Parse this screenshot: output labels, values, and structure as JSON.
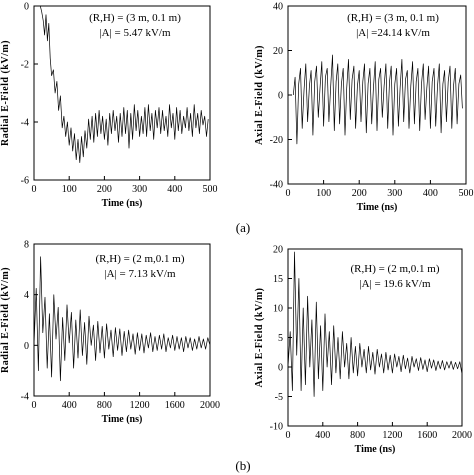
{
  "panel_labels": [
    "(a)",
    "(b)"
  ],
  "chart_data": [
    {
      "type": "line",
      "xlabel": "Time (ns)",
      "ylabel": "Radial E-Field (kV/m)",
      "annotations": [
        "(R,H) = (3 m, 0.1 m)",
        "|A| = 5.47 kV/m"
      ],
      "xlim": [
        0,
        500
      ],
      "ylim": [
        -6,
        0
      ],
      "xticks": [
        0,
        100,
        200,
        300,
        400,
        500
      ],
      "yticks": [
        0,
        -2,
        -4,
        -6
      ],
      "series": [
        {
          "x": [
            0,
            18,
            22,
            26,
            30,
            34,
            38,
            42,
            46,
            50,
            55,
            60,
            65,
            70,
            75,
            80,
            85,
            90,
            95,
            100,
            105,
            110,
            115,
            120,
            125,
            130,
            135,
            140,
            145,
            150,
            155,
            160,
            165,
            170,
            175,
            180,
            185,
            190,
            195,
            200,
            205,
            210,
            215,
            220,
            225,
            230,
            235,
            240,
            245,
            250,
            255,
            260,
            265,
            270,
            275,
            280,
            285,
            290,
            295,
            300,
            305,
            310,
            315,
            320,
            325,
            330,
            335,
            340,
            345,
            350,
            355,
            360,
            365,
            370,
            375,
            380,
            385,
            390,
            395,
            400,
            405,
            410,
            415,
            420,
            425,
            430,
            435,
            440,
            445,
            450,
            455,
            460,
            465,
            470,
            475,
            480,
            485,
            490,
            495
          ],
          "values": [
            0,
            0,
            -0.2,
            -0.5,
            -1.0,
            -0.3,
            -1.2,
            -0.6,
            -1.8,
            -2.4,
            -2.2,
            -3.0,
            -2.6,
            -3.6,
            -3.1,
            -4.2,
            -3.8,
            -4.5,
            -4.0,
            -4.8,
            -4.2,
            -5.0,
            -4.4,
            -5.3,
            -4.6,
            -5.4,
            -4.5,
            -5.2,
            -4.3,
            -4.9,
            -3.9,
            -4.6,
            -3.8,
            -4.7,
            -3.7,
            -4.5,
            -3.6,
            -4.4,
            -3.8,
            -4.6,
            -3.9,
            -4.8,
            -3.7,
            -4.4,
            -3.6,
            -4.3,
            -3.8,
            -4.7,
            -3.7,
            -4.5,
            -3.5,
            -4.4,
            -3.6,
            -4.9,
            -3.7,
            -4.6,
            -3.4,
            -4.3,
            -3.6,
            -4.5,
            -3.8,
            -4.4,
            -3.5,
            -4.5,
            -3.4,
            -4.3,
            -3.7,
            -4.6,
            -3.6,
            -4.2,
            -3.5,
            -4.4,
            -3.6,
            -4.3,
            -3.8,
            -4.5,
            -3.4,
            -4.2,
            -3.7,
            -4.6,
            -3.5,
            -4.3,
            -3.6,
            -4.4,
            -3.8,
            -4.2,
            -3.5,
            -4.3,
            -3.7,
            -4.5,
            -3.4,
            -4.2,
            -3.7,
            -4.4,
            -3.6,
            -4.1,
            -3.8,
            -4.5,
            -3.9
          ]
        }
      ]
    },
    {
      "type": "line",
      "xlabel": "Time (ns)",
      "ylabel": "Axial E-Field (kV/m)",
      "annotations": [
        "(R,H) = (3 m, 0.1 m)",
        "|A| =24.14 kV/m"
      ],
      "xlim": [
        0,
        500
      ],
      "ylim": [
        -40,
        40
      ],
      "xticks": [
        0,
        100,
        200,
        300,
        400,
        500
      ],
      "yticks": [
        40,
        20,
        0,
        -20,
        -40
      ],
      "series": [
        {
          "x": [
            15,
            20,
            25,
            30,
            35,
            40,
            45,
            50,
            55,
            60,
            65,
            70,
            75,
            80,
            85,
            90,
            95,
            100,
            105,
            110,
            115,
            120,
            125,
            130,
            135,
            140,
            145,
            150,
            155,
            160,
            165,
            170,
            175,
            180,
            185,
            190,
            195,
            200,
            205,
            210,
            215,
            220,
            225,
            230,
            235,
            240,
            245,
            250,
            255,
            260,
            265,
            270,
            275,
            280,
            285,
            290,
            295,
            300,
            305,
            310,
            315,
            320,
            325,
            330,
            335,
            340,
            345,
            350,
            355,
            360,
            365,
            370,
            375,
            380,
            385,
            390,
            395,
            400,
            405,
            410,
            415,
            420,
            425,
            430,
            435,
            440,
            445,
            450,
            455,
            460,
            465,
            470,
            475,
            480,
            485,
            490
          ],
          "values": [
            0,
            8,
            -22,
            5,
            12,
            -15,
            2,
            14,
            -12,
            4,
            11,
            -18,
            6,
            13,
            -10,
            3,
            15,
            -14,
            8,
            12,
            -12,
            4,
            18,
            -16,
            6,
            14,
            -13,
            5,
            12,
            -18,
            3,
            16,
            -11,
            7,
            13,
            -15,
            4,
            11,
            -12,
            6,
            14,
            -17,
            5,
            12,
            -13,
            3,
            15,
            -16,
            7,
            12,
            -10,
            4,
            14,
            -15,
            6,
            13,
            -18,
            5,
            12,
            -14,
            3,
            16,
            -12,
            7,
            11,
            -15,
            4,
            15,
            -13,
            6,
            12,
            -16,
            5,
            14,
            -11,
            3,
            13,
            -15,
            6,
            12,
            -14,
            4,
            14,
            -17,
            5,
            11,
            -12,
            6,
            13,
            -15,
            4,
            12,
            -13,
            5,
            9,
            -6
          ]
        }
      ]
    },
    {
      "type": "line",
      "xlabel": "Time (ns)",
      "ylabel": "Radial E-Field (kV/m)",
      "annotations": [
        "(R,H) = (2 m,0.1 m)",
        "|A| = 7.13 kV/m"
      ],
      "xlim": [
        0,
        2000
      ],
      "ylim": [
        -4,
        8
      ],
      "xticks": [
        0,
        400,
        800,
        1200,
        1600,
        2000
      ],
      "yticks": [
        8,
        4,
        0,
        -4
      ],
      "series": [
        {
          "x": [
            0,
            25,
            50,
            75,
            100,
            125,
            150,
            175,
            200,
            225,
            250,
            275,
            300,
            325,
            350,
            375,
            400,
            425,
            450,
            475,
            500,
            525,
            550,
            575,
            600,
            625,
            650,
            675,
            700,
            725,
            750,
            775,
            800,
            825,
            850,
            875,
            900,
            925,
            950,
            975,
            1000,
            1025,
            1050,
            1075,
            1100,
            1125,
            1150,
            1175,
            1200,
            1225,
            1250,
            1275,
            1300,
            1325,
            1350,
            1375,
            1400,
            1425,
            1450,
            1475,
            1500,
            1525,
            1550,
            1575,
            1600,
            1625,
            1650,
            1675,
            1700,
            1725,
            1750,
            1775,
            1800,
            1825,
            1850,
            1875,
            1900,
            1925,
            1950,
            1975,
            2000
          ],
          "values": [
            0,
            4.5,
            -2.0,
            7.0,
            1.0,
            3.8,
            -1.8,
            2.5,
            -2.5,
            4.0,
            0.5,
            3.0,
            -2.8,
            2.2,
            -1.2,
            3.2,
            0.2,
            2.6,
            -1.8,
            2.0,
            -1.0,
            2.8,
            -0.8,
            1.8,
            -1.5,
            2.3,
            0.0,
            1.6,
            -1.2,
            1.9,
            -0.6,
            1.5,
            -1.0,
            1.7,
            -0.3,
            1.2,
            -0.9,
            1.4,
            -0.4,
            1.3,
            -0.8,
            1.1,
            -0.5,
            1.2,
            -0.3,
            0.9,
            -0.7,
            1.0,
            -0.4,
            0.9,
            -0.6,
            0.8,
            -0.2,
            1.0,
            -0.5,
            0.7,
            -0.4,
            0.8,
            -0.3,
            0.9,
            -0.5,
            0.6,
            -0.2,
            0.8,
            -0.4,
            0.7,
            -0.3,
            0.6,
            -0.5,
            0.7,
            -0.2,
            0.6,
            -0.4,
            0.5,
            -0.3,
            0.7,
            -0.2,
            0.5,
            -0.3,
            0.6,
            0.0
          ]
        }
      ]
    },
    {
      "type": "line",
      "xlabel": "Time (ns)",
      "ylabel": "Axial E-Field (kV/m)",
      "annotations": [
        "(R,H) = (2 m,0.1 m)",
        "|A| = 19.6 kV/m"
      ],
      "xlim": [
        0,
        2000
      ],
      "ylim": [
        -10,
        20
      ],
      "xticks": [
        0,
        400,
        800,
        1200,
        1600,
        2000
      ],
      "yticks": [
        20,
        15,
        10,
        5,
        0,
        -5,
        -10
      ],
      "series": [
        {
          "x": [
            0,
            25,
            50,
            75,
            100,
            125,
            150,
            175,
            200,
            225,
            250,
            275,
            300,
            325,
            350,
            375,
            400,
            425,
            450,
            475,
            500,
            525,
            550,
            575,
            600,
            625,
            650,
            675,
            700,
            725,
            750,
            775,
            800,
            825,
            850,
            875,
            900,
            925,
            950,
            975,
            1000,
            1025,
            1050,
            1075,
            1100,
            1125,
            1150,
            1175,
            1200,
            1225,
            1250,
            1275,
            1300,
            1325,
            1350,
            1375,
            1400,
            1425,
            1450,
            1475,
            1500,
            1525,
            1550,
            1575,
            1600,
            1625,
            1650,
            1675,
            1700,
            1725,
            1750,
            1775,
            1800,
            1825,
            1850,
            1875,
            1900,
            1925,
            1950,
            1975,
            2000
          ],
          "values": [
            0,
            6,
            -4,
            19.5,
            2,
            15,
            -4,
            10,
            -3,
            12,
            0,
            8,
            -5,
            11,
            -2,
            7,
            -4,
            9,
            0,
            6,
            -3,
            7,
            -1,
            5,
            -2,
            6,
            0,
            4,
            -2,
            5,
            -1,
            3.5,
            -1.5,
            4,
            0,
            3,
            -1,
            3.5,
            -0.5,
            2.5,
            -1.2,
            3,
            0,
            2.2,
            -1,
            2.5,
            -0.5,
            2,
            -1,
            2.2,
            0,
            1.8,
            -0.8,
            2,
            -0.3,
            1.5,
            -1,
            1.8,
            0,
            1.4,
            -0.6,
            1.6,
            -0.4,
            1.2,
            -0.8,
            1.4,
            -0.2,
            1.2,
            -0.6,
            1.0,
            -0.3,
            1.1,
            -0.5,
            0.9,
            -0.2,
            1.0,
            -0.4,
            0.8,
            -0.3,
            0.9,
            -1.2
          ]
        }
      ]
    }
  ]
}
